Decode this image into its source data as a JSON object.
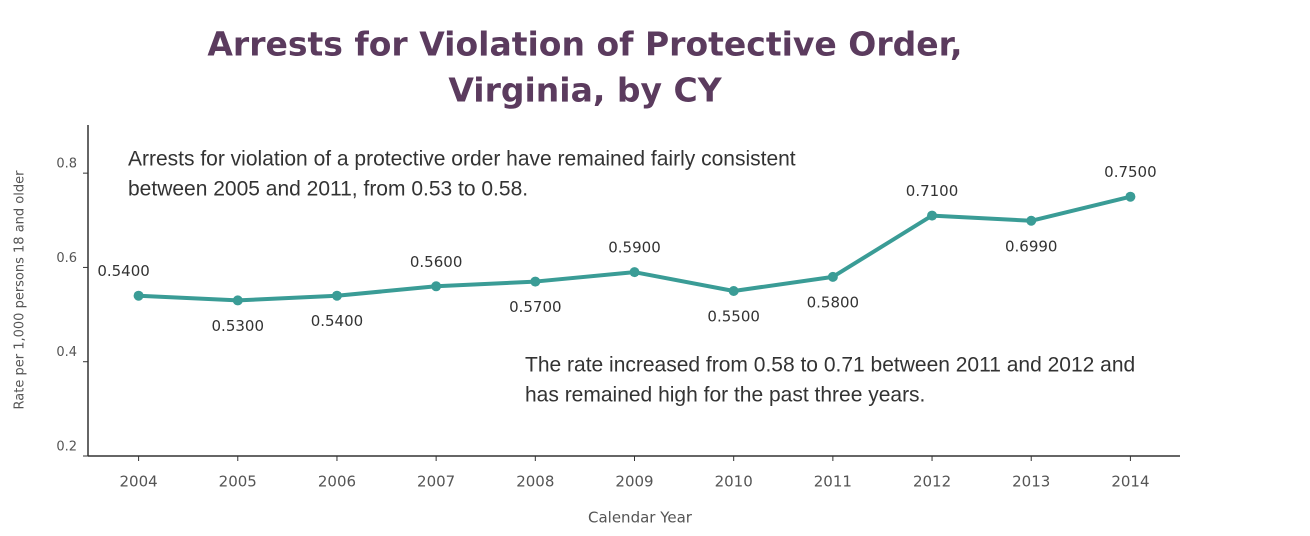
{
  "chart_data": {
    "type": "line",
    "title": [
      "Arrests for Violation of Protective Order,",
      "Virginia, by CY"
    ],
    "x_label": "Calendar Year",
    "y_label": "Rate per 1,000 persons 18 and older",
    "categories": [
      "2004",
      "2005",
      "2006",
      "2007",
      "2008",
      "2009",
      "2010",
      "2011",
      "2012",
      "2013",
      "2014"
    ],
    "series": [
      {
        "name": "Rate",
        "color": "#3a9c96",
        "values": [
          0.54,
          0.53,
          0.54,
          0.56,
          0.57,
          0.59,
          0.55,
          0.58,
          0.71,
          0.699,
          0.75
        ],
        "value_labels": [
          "0.5400",
          "0.5300",
          "0.5400",
          "0.5600",
          "0.5700",
          "0.5900",
          "0.5500",
          "0.5800",
          "0.7100",
          "0.6990",
          "0.7500"
        ]
      }
    ],
    "ylim": [
      0.2,
      0.9
    ],
    "yticks": [
      0.2,
      0.4,
      0.6,
      0.8
    ],
    "annotations": [
      [
        "Arrests for violation of a protective order have remained fairly consistent",
        "between 2005 and 2011, from 0.53 to 0.58."
      ],
      [
        "The rate increased from 0.58 to 0.71 between 2011 and 2012 and",
        "has remained high for the past three years."
      ]
    ]
  }
}
